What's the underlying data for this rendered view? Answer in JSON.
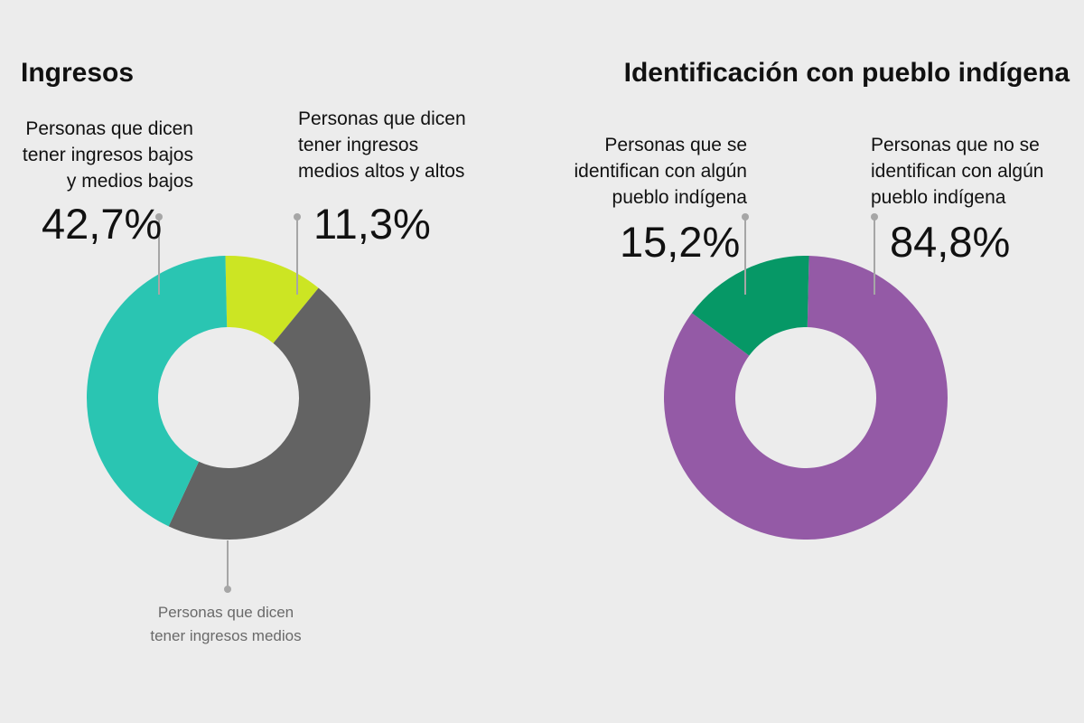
{
  "chart_data": [
    {
      "type": "pie",
      "title": "Ingresos",
      "categories": [
        "Personas que dicen tener ingresos medios altos y altos",
        "Personas que dicen tener ingresos medios",
        "Personas que dicen tener ingresos bajos y medios bajos"
      ],
      "values": [
        11.3,
        46.0,
        42.7
      ],
      "value_labels": [
        "11,3%",
        "",
        "42,7%"
      ],
      "colors": [
        "#cce523",
        "#636363",
        "#2ac5b2"
      ],
      "donut": true
    },
    {
      "type": "pie",
      "title": "Identificación con pueblo indígena",
      "categories": [
        "Personas que no se identifican con algún pueblo indígena",
        "Personas que se identifican con algún pueblo indígena"
      ],
      "values": [
        84.8,
        15.2
      ],
      "value_labels": [
        "84,8%",
        "15,2%"
      ],
      "colors": [
        "#945aa6",
        "#069866"
      ],
      "donut": true
    }
  ],
  "labels": {
    "left_low": "Personas que dicen\ntener ingresos bajos\ny medios bajos",
    "left_high": "Personas que dicen\ntener ingresos\nmedios altos y altos",
    "left_mid": "Personas que dicen\ntener ingresos medios",
    "right_yes": "Personas que se\nidentifican con algún\npueblo indígena",
    "right_no": "Personas que no se\nidentifican con algún\npueblo indígena"
  },
  "leader_color": "#a6a6a6"
}
